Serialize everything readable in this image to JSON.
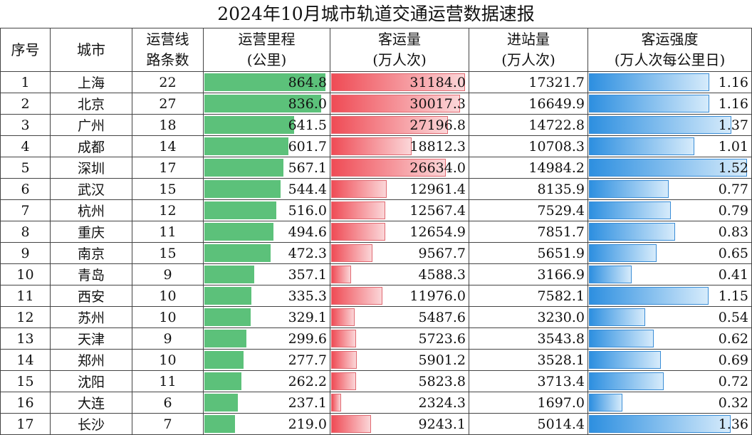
{
  "title": "2024年10月城市轨道交通运营数据速报",
  "headers": [
    [
      "序号"
    ],
    [
      "城市"
    ],
    [
      "运营线",
      "路条数"
    ],
    [
      "运营里程",
      "(公里)"
    ],
    [
      "客运量",
      "(万人次)"
    ],
    [
      "进站量",
      "(万人次)"
    ],
    [
      "客运强度",
      "(万人次每公里日)"
    ]
  ],
  "colors": {
    "mileage_bar": "#5cc17a",
    "passenger_bar": "#ef4b55",
    "intensity_bar": "#2d8fe0"
  },
  "chart_data": {
    "type": "table",
    "bar_max": {
      "mileage": 864.8,
      "passengers": 31184.0,
      "intensity": 1.52
    },
    "rows": [
      {
        "rank": "1",
        "city": "上海",
        "lines": "22",
        "mileage": "864.8",
        "passengers": "31184.0",
        "entries": "17321.7",
        "intensity": "1.16"
      },
      {
        "rank": "2",
        "city": "北京",
        "lines": "27",
        "mileage": "836.0",
        "passengers": "30017.3",
        "entries": "16649.9",
        "intensity": "1.16"
      },
      {
        "rank": "3",
        "city": "广州",
        "lines": "18",
        "mileage": "641.5",
        "passengers": "27196.8",
        "entries": "14722.8",
        "intensity": "1.37"
      },
      {
        "rank": "4",
        "city": "成都",
        "lines": "14",
        "mileage": "601.7",
        "passengers": "18812.3",
        "entries": "10708.3",
        "intensity": "1.01"
      },
      {
        "rank": "5",
        "city": "深圳",
        "lines": "17",
        "mileage": "567.1",
        "passengers": "26634.0",
        "entries": "14984.2",
        "intensity": "1.52"
      },
      {
        "rank": "6",
        "city": "武汉",
        "lines": "15",
        "mileage": "544.4",
        "passengers": "12961.4",
        "entries": "8135.9",
        "intensity": "0.77"
      },
      {
        "rank": "7",
        "city": "杭州",
        "lines": "12",
        "mileage": "516.0",
        "passengers": "12567.4",
        "entries": "7529.4",
        "intensity": "0.79"
      },
      {
        "rank": "8",
        "city": "重庆",
        "lines": "11",
        "mileage": "494.6",
        "passengers": "12654.9",
        "entries": "7851.7",
        "intensity": "0.83"
      },
      {
        "rank": "9",
        "city": "南京",
        "lines": "15",
        "mileage": "472.3",
        "passengers": "9567.7",
        "entries": "5651.9",
        "intensity": "0.65"
      },
      {
        "rank": "10",
        "city": "青岛",
        "lines": "9",
        "mileage": "357.1",
        "passengers": "4588.3",
        "entries": "3166.9",
        "intensity": "0.41"
      },
      {
        "rank": "11",
        "city": "西安",
        "lines": "10",
        "mileage": "335.3",
        "passengers": "11976.0",
        "entries": "7582.1",
        "intensity": "1.15"
      },
      {
        "rank": "12",
        "city": "苏州",
        "lines": "10",
        "mileage": "329.1",
        "passengers": "5487.6",
        "entries": "3230.0",
        "intensity": "0.54"
      },
      {
        "rank": "13",
        "city": "天津",
        "lines": "9",
        "mileage": "299.6",
        "passengers": "5723.6",
        "entries": "3543.8",
        "intensity": "0.62"
      },
      {
        "rank": "14",
        "city": "郑州",
        "lines": "10",
        "mileage": "277.7",
        "passengers": "5901.2",
        "entries": "3528.1",
        "intensity": "0.69"
      },
      {
        "rank": "15",
        "city": "沈阳",
        "lines": "11",
        "mileage": "262.2",
        "passengers": "5823.8",
        "entries": "3713.4",
        "intensity": "0.72"
      },
      {
        "rank": "16",
        "city": "大连",
        "lines": "6",
        "mileage": "237.1",
        "passengers": "2324.3",
        "entries": "1697.0",
        "intensity": "0.32"
      },
      {
        "rank": "17",
        "city": "长沙",
        "lines": "7",
        "mileage": "219.0",
        "passengers": "9243.1",
        "entries": "5014.4",
        "intensity": "1.36"
      }
    ]
  }
}
